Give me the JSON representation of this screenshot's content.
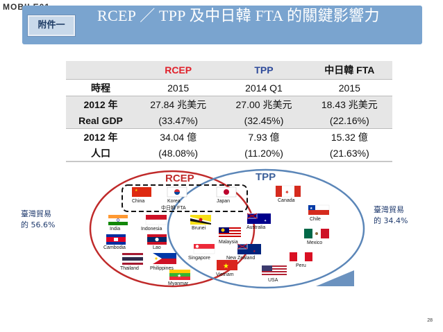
{
  "watermark": "MOBILE01",
  "header": {
    "badge": "附件一",
    "title": "RCEP ／ TPP 及中日韓 FTA 的關鍵影響力"
  },
  "table": {
    "headers": [
      "",
      "RCEP",
      "TPP",
      "中日韓 FTA"
    ],
    "header_colors": [
      "#111111",
      "#e0202a",
      "#2e4a9a",
      "#111111"
    ],
    "rows": [
      {
        "label": "時程",
        "cells": [
          "2015",
          "2014 Q1",
          "2015"
        ]
      },
      {
        "label": "2012 年",
        "cells": [
          "27.84 兆美元",
          "27.00 兆美元",
          "18.43 兆美元"
        ]
      },
      {
        "label": "Real GDP",
        "cells": [
          "(33.47%)",
          "(32.45%)",
          "(22.16%)"
        ]
      },
      {
        "label": "2012 年",
        "cells": [
          "34.04 億",
          "7.93 億",
          "15.32 億"
        ]
      },
      {
        "label": "人口",
        "cells": [
          "(48.08%)",
          "(11.20%)",
          "(21.63%)"
        ]
      }
    ]
  },
  "diagram": {
    "rcep_label": "RCEP",
    "tpp_label": "TPP",
    "fta_label": "中日韓 FTA",
    "colors": {
      "rcep": "#c02a2a",
      "tpp": "#5b86b8"
    },
    "left_note": [
      "臺灣貿易",
      "的 56.6%"
    ],
    "right_note": [
      "臺灣貿易",
      "的 34.4%"
    ],
    "countries": {
      "china": "China",
      "korea": "Korea",
      "japan": "Japan",
      "india": "India",
      "indonesia": "Indonesia",
      "cambodia": "Cambodia",
      "lao": "Lao",
      "thailand": "Thailand",
      "philippines": "Philippines",
      "myanmar": "Myanmar",
      "brunei": "Brunei",
      "malaysia": "Malaysia",
      "singapore": "Singapore",
      "vietnam": "Vietnam",
      "australia": "Australia",
      "new_zealand": "New Zealand",
      "canada": "Canada",
      "chile": "Chile",
      "mexico": "Mexico",
      "peru": "Peru",
      "usa": "USA"
    }
  },
  "page_number": "28"
}
